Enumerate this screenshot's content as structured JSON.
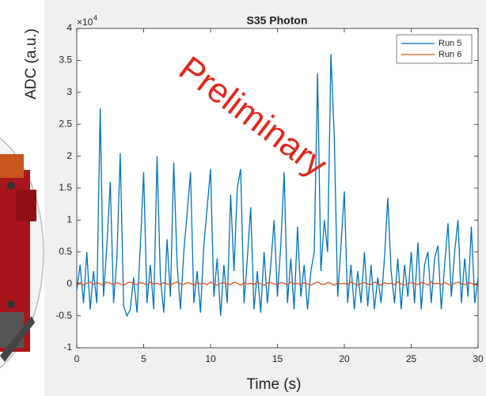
{
  "chart_data": {
    "type": "line",
    "title": "S35 Photon",
    "xlabel": "Time (s)",
    "ylabel": "ADC (a.u.)",
    "y_multiplier": {
      "base": "×10",
      "exponent": "4"
    },
    "watermark": "Preliminary",
    "xlim": [
      0,
      30
    ],
    "xticks": [
      0,
      5,
      10,
      15,
      20,
      25,
      30
    ],
    "ylim": [
      -1,
      4
    ],
    "yticks": [
      -1,
      -0.5,
      0,
      0.5,
      1,
      1.5,
      2,
      2.5,
      3,
      3.5,
      4
    ],
    "legend": "upper right",
    "x": [
      0,
      0.25,
      0.5,
      0.75,
      1,
      1.25,
      1.5,
      1.75,
      2,
      2.25,
      2.5,
      2.75,
      3,
      3.25,
      3.5,
      3.75,
      4,
      4.25,
      4.5,
      4.75,
      5,
      5.25,
      5.5,
      5.75,
      6,
      6.25,
      6.5,
      6.75,
      7,
      7.25,
      7.5,
      7.75,
      8,
      8.25,
      8.5,
      8.75,
      9,
      9.25,
      9.5,
      9.75,
      10,
      10.25,
      10.5,
      10.75,
      11,
      11.25,
      11.5,
      11.75,
      12,
      12.25,
      12.5,
      12.75,
      13,
      13.25,
      13.5,
      13.75,
      14,
      14.25,
      14.5,
      14.75,
      15,
      15.25,
      15.5,
      15.75,
      16,
      16.25,
      16.5,
      16.75,
      17,
      17.25,
      17.5,
      17.75,
      18,
      18.25,
      18.5,
      18.75,
      19,
      19.25,
      19.5,
      19.75,
      20,
      20.25,
      20.5,
      20.75,
      21,
      21.25,
      21.5,
      21.75,
      22,
      22.25,
      22.5,
      22.75,
      23,
      23.25,
      23.5,
      23.75,
      24,
      24.25,
      24.5,
      24.75,
      25,
      25.25,
      25.5,
      25.75,
      26,
      26.25,
      26.5,
      26.75,
      27,
      27.25,
      27.5,
      27.75,
      28,
      28.25,
      28.5,
      28.75,
      29,
      29.25,
      29.5,
      29.75,
      30
    ],
    "series": [
      {
        "name": "Run 5",
        "color": "#0072bd",
        "values": [
          -0.1,
          0.3,
          -0.3,
          0.5,
          -0.4,
          0.2,
          -0.3,
          2.75,
          -0.2,
          0.6,
          1.6,
          -0.3,
          0.4,
          2.05,
          -0.35,
          -0.5,
          -0.4,
          0.1,
          -0.45,
          0.6,
          1.75,
          -0.3,
          0.3,
          -0.4,
          2.0,
          0.1,
          -0.45,
          0.7,
          -0.2,
          1.9,
          0.3,
          -0.4,
          0.5,
          1.1,
          1.75,
          -0.3,
          0.2,
          -0.45,
          0.6,
          1.2,
          1.8,
          -0.2,
          0.4,
          -0.5,
          0.3,
          -0.3,
          1.4,
          0.2,
          1.5,
          1.8,
          -0.3,
          0.4,
          1.2,
          -0.4,
          0.2,
          -0.45,
          0.5,
          -0.3,
          0.3,
          1.0,
          -0.2,
          0.6,
          1.75,
          -0.3,
          0.4,
          -0.4,
          0.9,
          -0.2,
          0.3,
          -0.4,
          0.2,
          0.5,
          3.3,
          0.2,
          1.0,
          0.5,
          3.6,
          2.3,
          -0.2,
          0.6,
          1.45,
          -0.3,
          0.3,
          -0.4,
          0.2,
          -0.3,
          0.5,
          -0.35,
          0.3,
          -0.4,
          0.1,
          -0.3,
          0.4,
          1.35,
          0.2,
          -0.3,
          0.4,
          -0.4,
          0.3,
          -0.2,
          0.5,
          -0.3,
          0.65,
          -0.4,
          0.3,
          0.5,
          -0.3,
          0.4,
          0.6,
          -0.4,
          0.3,
          0.95,
          -0.2,
          0.5,
          1.0,
          -0.3,
          0.4,
          -0.2,
          0.9,
          -0.3,
          0.1
        ]
      },
      {
        "name": "Run 6",
        "color": "#d95319",
        "values": [
          0,
          0.02,
          -0.02,
          0.01,
          0.03,
          -0.01,
          0.02,
          0,
          -0.02,
          0.03,
          0.01,
          -0.01,
          0.02,
          0,
          -0.02,
          0.01,
          0.03,
          0,
          -0.01,
          0.02,
          0.01,
          -0.02,
          0.03,
          0,
          0.01,
          -0.01,
          0.02,
          0,
          -0.02,
          0.01,
          0.03,
          0,
          -0.01,
          0.02,
          0.01,
          -0.02,
          0.02,
          0,
          0.01,
          -0.01,
          0.03,
          0,
          -0.02,
          0.01,
          0.02,
          0,
          -0.01,
          0.03,
          0.01,
          -0.02,
          0.02,
          0,
          0.01,
          -0.01,
          0.03,
          0,
          -0.02,
          0.01,
          0.02,
          0,
          -0.01,
          0.02,
          0.01,
          -0.02,
          0.03,
          0,
          0.01,
          -0.01,
          0.02,
          0,
          -0.02,
          0.01,
          0.03,
          0,
          -0.01,
          0.02,
          0.01,
          -0.02,
          0.02,
          0,
          0.01,
          -0.01,
          0.03,
          0,
          -0.02,
          0.01,
          0.02,
          0,
          -0.01,
          0.03,
          0.01,
          -0.02,
          0.02,
          0,
          0.01,
          -0.01,
          0.03,
          0,
          -0.02,
          0.01,
          0.02,
          0,
          -0.01,
          0.02,
          0.01,
          -0.02,
          0.03,
          0,
          0.01,
          -0.01,
          0.02,
          0,
          -0.02,
          0.01,
          0.03,
          0,
          -0.01,
          0.02,
          0.01,
          -0.02,
          0
        ]
      }
    ]
  }
}
